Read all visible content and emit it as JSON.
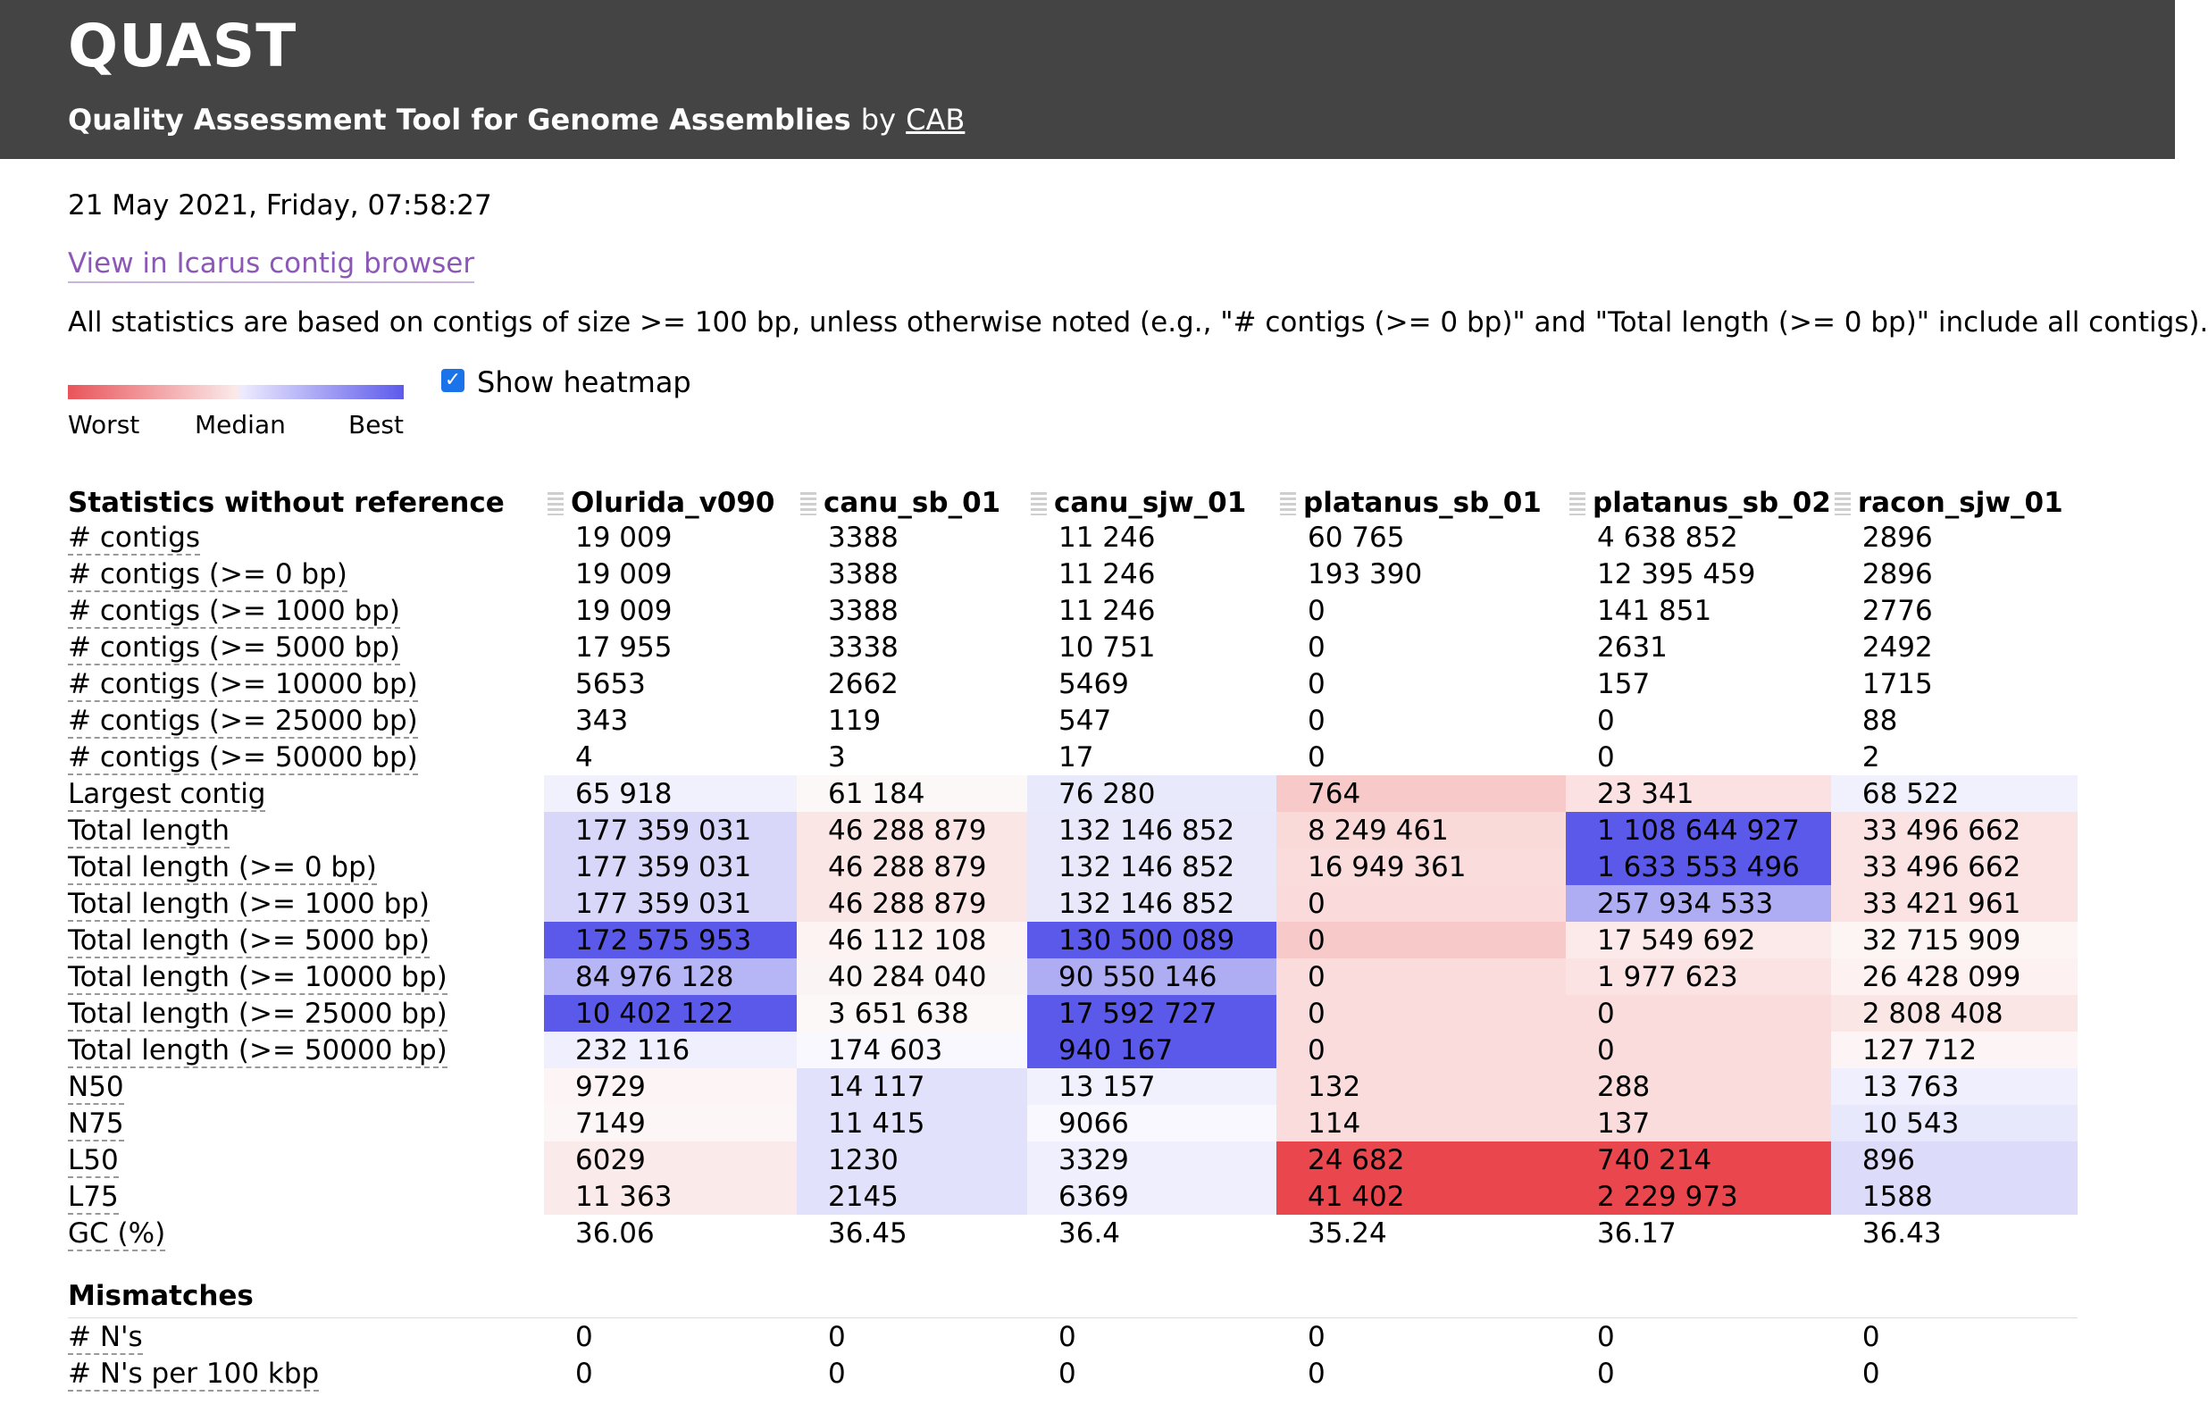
{
  "header": {
    "app_title": "QUAST",
    "subtitle": "Quality Assessment Tool for Genome Assemblies",
    "by": "by",
    "org_link": "CAB"
  },
  "date": "21 May 2021, Friday, 07:58:27",
  "icarus_link": "View in Icarus contig browser",
  "note": "All statistics are based on contigs of size >= 100 bp, unless otherwise noted (e.g., \"# contigs (>= 0 bp)\" and \"Total length (>= 0 bp)\" include all contigs).",
  "legend": {
    "worst": "Worst",
    "median": "Median",
    "best": "Best"
  },
  "heatmap_toggle": {
    "label": "Show heatmap",
    "checked": true
  },
  "table": {
    "header_label": "Statistics without reference",
    "columns": [
      "Olurida_v090",
      "canu_sb_01",
      "canu_sjw_01",
      "platanus_sb_01",
      "platanus_sb_02",
      "racon_sjw_01"
    ],
    "rows": [
      {
        "metric": "# contigs",
        "values": [
          "19 009",
          "3388",
          "11 246",
          "60 765",
          "4 638 852",
          "2896"
        ],
        "colors": [
          "",
          "",
          "",
          "",
          "",
          ""
        ]
      },
      {
        "metric": "# contigs (>= 0 bp)",
        "values": [
          "19 009",
          "3388",
          "11 246",
          "193 390",
          "12 395 459",
          "2896"
        ],
        "colors": [
          "",
          "",
          "",
          "",
          "",
          ""
        ]
      },
      {
        "metric": "# contigs (>= 1000 bp)",
        "values": [
          "19 009",
          "3388",
          "11 246",
          "0",
          "141 851",
          "2776"
        ],
        "colors": [
          "",
          "",
          "",
          "",
          "",
          ""
        ]
      },
      {
        "metric": "# contigs (>= 5000 bp)",
        "values": [
          "17 955",
          "3338",
          "10 751",
          "0",
          "2631",
          "2492"
        ],
        "colors": [
          "",
          "",
          "",
          "",
          "",
          ""
        ]
      },
      {
        "metric": "# contigs (>= 10000 bp)",
        "values": [
          "5653",
          "2662",
          "5469",
          "0",
          "157",
          "1715"
        ],
        "colors": [
          "",
          "",
          "",
          "",
          "",
          ""
        ]
      },
      {
        "metric": "# contigs (>= 25000 bp)",
        "values": [
          "343",
          "119",
          "547",
          "0",
          "0",
          "88"
        ],
        "colors": [
          "",
          "",
          "",
          "",
          "",
          ""
        ]
      },
      {
        "metric": "# contigs (>= 50000 bp)",
        "values": [
          "4",
          "3",
          "17",
          "0",
          "0",
          "2"
        ],
        "colors": [
          "",
          "",
          "",
          "",
          "",
          ""
        ]
      },
      {
        "metric": "Largest contig",
        "values": [
          "65 918",
          "61 184",
          "76 280",
          "764",
          "23 341",
          "68 522"
        ],
        "colors": [
          "#f1f1fd",
          "#fdf8f8",
          "#e9e9fc",
          "#f7c9c9",
          "#fbe1e1",
          "#f1f1fd"
        ]
      },
      {
        "metric": "Total length",
        "values": [
          "177 359 031",
          "46 288 879",
          "132 146 852",
          "8 249 461",
          "1 108 644 927",
          "33 496 662"
        ],
        "colors": [
          "#d8d7fa",
          "#fbe6e6",
          "#e9e8fb",
          "#fad9d9",
          "#5b59ea",
          "#fbe3e3"
        ]
      },
      {
        "metric": "Total length (>= 0 bp)",
        "values": [
          "177 359 031",
          "46 288 879",
          "132 146 852",
          "16 949 361",
          "1 633 553 496",
          "33 496 662"
        ],
        "colors": [
          "#d8d7fa",
          "#fbe6e6",
          "#e9e8fb",
          "#fadcdc",
          "#5b59ea",
          "#fbe3e3"
        ]
      },
      {
        "metric": "Total length (>= 1000 bp)",
        "values": [
          "177 359 031",
          "46 288 879",
          "132 146 852",
          "0",
          "257 934 533",
          "33 421 961"
        ],
        "colors": [
          "#d8d7fa",
          "#fbe6e6",
          "#e9e8fb",
          "#fadada",
          "#aeadf4",
          "#fbe3e3"
        ]
      },
      {
        "metric": "Total length (>= 5000 bp)",
        "values": [
          "172 575 953",
          "46 112 108",
          "130 500 089",
          "0",
          "17 549 692",
          "32 715 909"
        ],
        "colors": [
          "#5b59ea",
          "#fdf3f3",
          "#5b59ea",
          "#f7c9c9",
          "#fce9e9",
          "#fdf4f4"
        ]
      },
      {
        "metric": "Total length (>= 10000 bp)",
        "values": [
          "84 976 128",
          "40 284 040",
          "90 550 146",
          "0",
          "1 977 623",
          "26 428 099"
        ],
        "colors": [
          "#b6b5f5",
          "#fbf4f4",
          "#aeadf4",
          "#fadcdc",
          "#fbe3e3",
          "#fdf1f1"
        ]
      },
      {
        "metric": "Total length (>= 25000 bp)",
        "values": [
          "10 402 122",
          "3 651 638",
          "17 592 727",
          "0",
          "0",
          "2 808 408"
        ],
        "colors": [
          "#5b59ea",
          "#fdf8f8",
          "#5b59ea",
          "#fadcdc",
          "#fadcdc",
          "#fbe6e6"
        ]
      },
      {
        "metric": "Total length (>= 50000 bp)",
        "values": [
          "232 116",
          "174 603",
          "940 167",
          "0",
          "0",
          "127 712"
        ],
        "colors": [
          "#f0effd",
          "#f8f8fe",
          "#5b59ea",
          "#fadcdc",
          "#fadcdc",
          "#fdf5f5"
        ]
      },
      {
        "metric": "N50",
        "values": [
          "9729",
          "14 117",
          "13 157",
          "132",
          "288",
          "13 763"
        ],
        "colors": [
          "#fdf5f5",
          "#e2e1fb",
          "#f1f0fd",
          "#fadcdc",
          "#fadcdc",
          "#efeffd"
        ]
      },
      {
        "metric": "N75",
        "values": [
          "7149",
          "11 415",
          "9066",
          "114",
          "137",
          "10 543"
        ],
        "colors": [
          "#fdf6f6",
          "#e2e1fb",
          "#f8f8fe",
          "#fadcdc",
          "#fadcdc",
          "#e8e8fc"
        ]
      },
      {
        "metric": "L50",
        "values": [
          "6029",
          "1230",
          "3329",
          "24 682",
          "740 214",
          "896"
        ],
        "colors": [
          "#fbeaea",
          "#e2e1fb",
          "#efeffd",
          "#e9474d",
          "#e9474d",
          "#dcdbfa"
        ]
      },
      {
        "metric": "L75",
        "values": [
          "11 363",
          "2145",
          "6369",
          "41 402",
          "2 229 973",
          "1588"
        ],
        "colors": [
          "#fbeaea",
          "#e2e1fb",
          "#efeffd",
          "#e9474d",
          "#e9474d",
          "#dcdbfa"
        ]
      },
      {
        "metric": "GC (%)",
        "values": [
          "36.06",
          "36.45",
          "36.4",
          "35.24",
          "36.17",
          "36.43"
        ],
        "colors": [
          "",
          "",
          "",
          "",
          "",
          ""
        ]
      }
    ],
    "group2_label": "Mismatches",
    "rows2": [
      {
        "metric": "# N's",
        "values": [
          "0",
          "0",
          "0",
          "0",
          "0",
          "0"
        ]
      },
      {
        "metric": "# N's per 100 kbp",
        "values": [
          "0",
          "0",
          "0",
          "0",
          "0",
          "0"
        ]
      }
    ]
  }
}
